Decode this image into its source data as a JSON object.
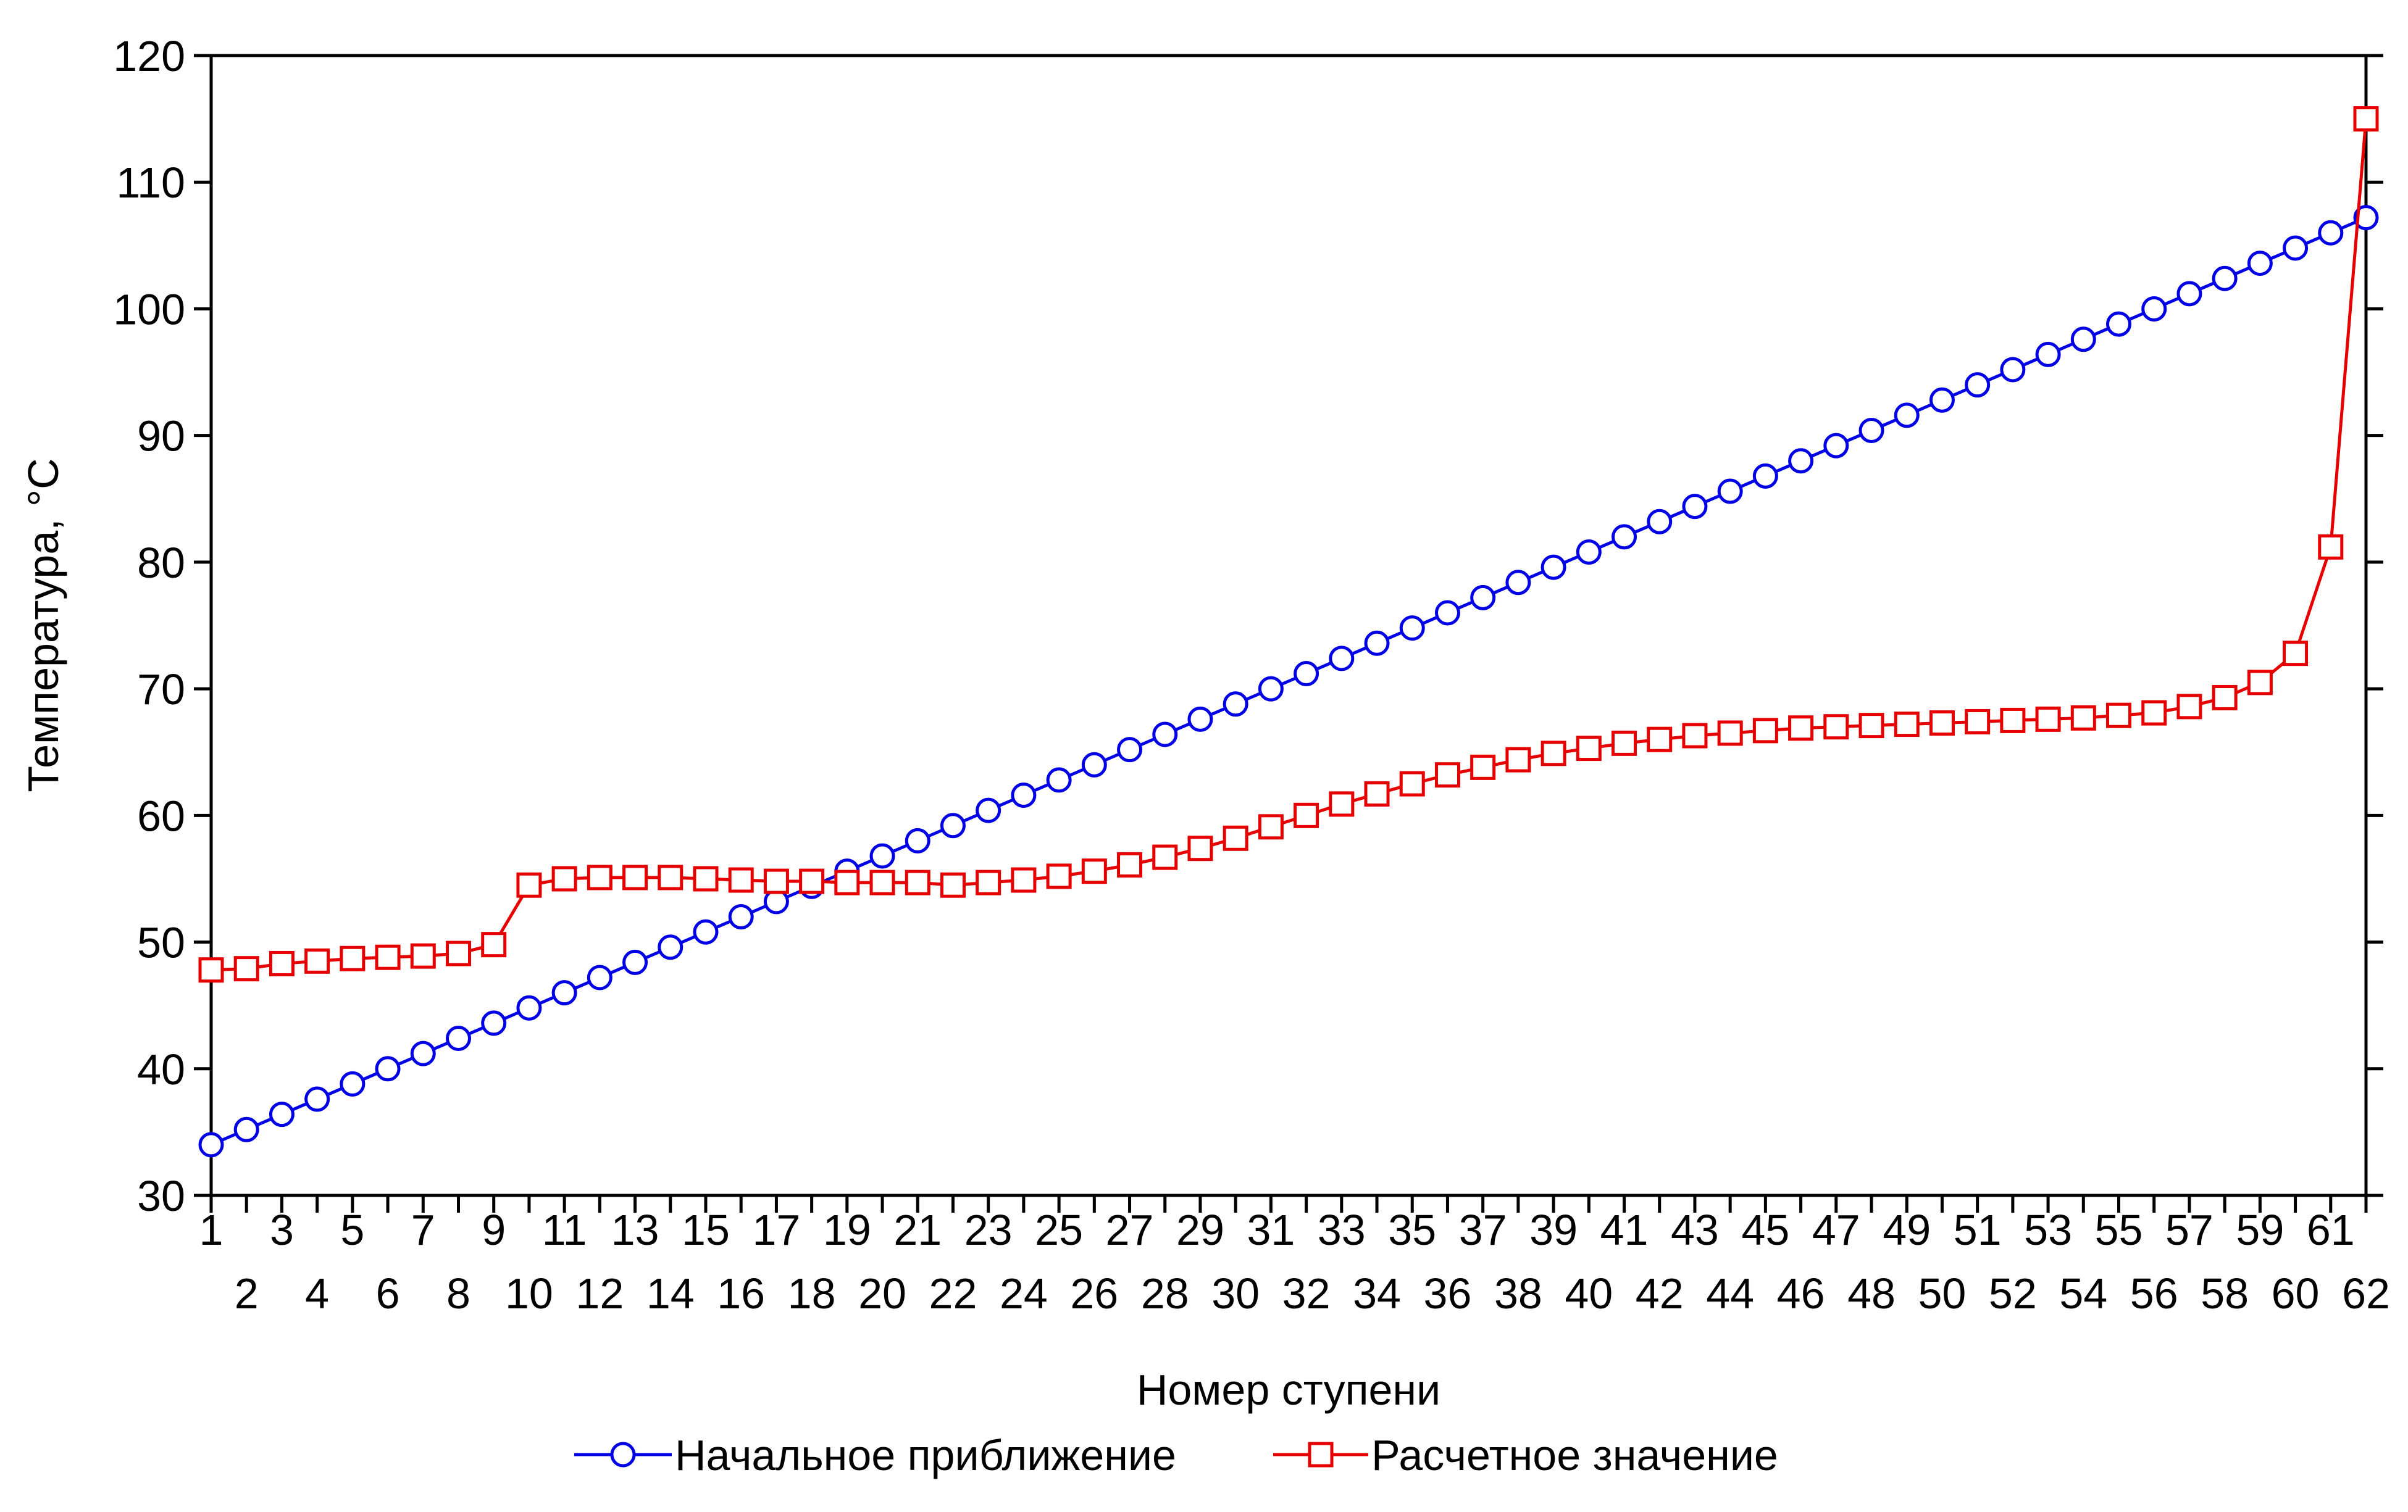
{
  "chart_data": {
    "type": "line",
    "xlabel": "Номер ступени",
    "ylabel": "Температура, °C",
    "ylim": [
      30,
      120
    ],
    "yticks": [
      "30",
      "40",
      "50",
      "60",
      "70",
      "80",
      "90",
      "100",
      "110",
      "120"
    ],
    "x": [
      1,
      2,
      3,
      4,
      5,
      6,
      7,
      8,
      9,
      10,
      11,
      12,
      13,
      14,
      15,
      16,
      17,
      18,
      19,
      20,
      21,
      22,
      23,
      24,
      25,
      26,
      27,
      28,
      29,
      30,
      31,
      32,
      33,
      34,
      35,
      36,
      37,
      38,
      39,
      40,
      41,
      42,
      43,
      44,
      45,
      46,
      47,
      48,
      49,
      50,
      51,
      52,
      53,
      54,
      55,
      56,
      57,
      58,
      59,
      60,
      61,
      62
    ],
    "xlim": [
      1,
      62
    ],
    "grid": false,
    "legend_position": "bottom",
    "series": [
      {
        "name": "Начальное приближение",
        "color": "#0000e6",
        "marker": "circle",
        "values": [
          34.0,
          35.2,
          36.4,
          37.6,
          38.8,
          40.0,
          41.2,
          42.4,
          43.6,
          44.8,
          46.0,
          47.2,
          48.4,
          49.6,
          50.8,
          52.0,
          53.2,
          54.4,
          55.6,
          56.8,
          58.0,
          59.2,
          60.4,
          61.6,
          62.8,
          64.0,
          65.2,
          66.4,
          67.6,
          68.8,
          70.0,
          71.2,
          72.4,
          73.6,
          74.8,
          76.0,
          77.2,
          78.4,
          79.6,
          80.8,
          82.0,
          83.2,
          84.4,
          85.6,
          86.8,
          88.0,
          89.2,
          90.4,
          91.6,
          92.8,
          94.0,
          95.2,
          96.4,
          97.6,
          98.8,
          100.0,
          101.2,
          102.4,
          103.6,
          104.8,
          106.0,
          107.2
        ]
      },
      {
        "name": "Расчетное значение",
        "color": "#e60000",
        "marker": "square",
        "values": [
          47.8,
          47.9,
          48.3,
          48.5,
          48.7,
          48.8,
          48.9,
          49.1,
          49.8,
          54.5,
          55.0,
          55.1,
          55.1,
          55.1,
          55.0,
          54.9,
          54.8,
          54.8,
          54.7,
          54.7,
          54.7,
          54.5,
          54.7,
          54.9,
          55.2,
          55.6,
          56.1,
          56.7,
          57.4,
          58.2,
          59.1,
          60.0,
          60.9,
          61.7,
          62.5,
          63.2,
          63.8,
          64.4,
          64.9,
          65.3,
          65.7,
          66.0,
          66.3,
          66.5,
          66.7,
          66.9,
          67.0,
          67.1,
          67.2,
          67.3,
          67.4,
          67.5,
          67.6,
          67.7,
          67.9,
          68.1,
          68.6,
          69.3,
          70.5,
          72.8,
          81.2,
          115.0
        ]
      }
    ]
  }
}
